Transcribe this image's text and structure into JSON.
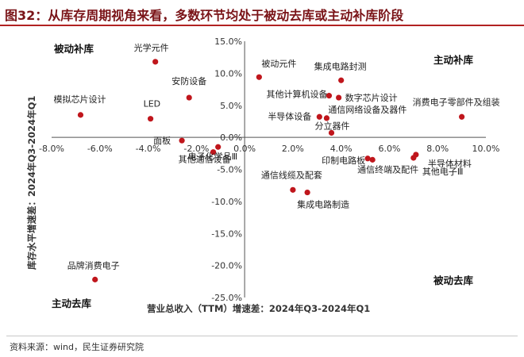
{
  "title": "图32：从库存周期视角来看，多数环节均处于被动去库或主动补库阶段",
  "source": "资料来源：wind，民生证券研究院",
  "colors": {
    "point": "#c0161c",
    "title": "#7a1418",
    "rule": "#b22222"
  },
  "chart_data": {
    "type": "scatter",
    "xlabel": "营业总收入（TTM）增速差：2024年Q3-2024年Q1",
    "ylabel": "库存水平增速差：2024年Q3-2024年Q1",
    "xlim": [
      -8,
      10
    ],
    "ylim": [
      -25,
      15
    ],
    "x_ticks": [
      -8,
      -6,
      -4,
      -2,
      0,
      2,
      4,
      6,
      8,
      10
    ],
    "x_tick_labels": [
      "-8.0%",
      "-6.0%",
      "-4.0%",
      "-2.0%",
      "0.0%",
      "2.0%",
      "4.0%",
      "6.0%",
      "8.0%",
      "10.0%"
    ],
    "y_ticks": [
      15,
      10,
      5,
      0,
      -5,
      -10,
      -15,
      -20,
      -25
    ],
    "y_tick_labels": [
      "15.0%",
      "10.0%",
      "5.0%",
      "0.0%",
      "-5.0%",
      "-10.0%",
      "-15.0%",
      "-20.0%",
      "-25.0%"
    ],
    "quadrants": {
      "top_left": "被动补库",
      "top_right": "主动补库",
      "bottom_left": "主动去库",
      "bottom_right": "被动去库"
    },
    "points": [
      {
        "name": "光学元件",
        "x": -3.7,
        "y": 11.8
      },
      {
        "name": "安防设备",
        "x": -2.3,
        "y": 6.2
      },
      {
        "name": "模拟芯片设计",
        "x": -6.8,
        "y": 3.5
      },
      {
        "name": "LED",
        "x": -3.9,
        "y": 2.9
      },
      {
        "name": "面板",
        "x": -2.6,
        "y": -0.5
      },
      {
        "name": "电子化学品Ⅲ",
        "x": -1.1,
        "y": -1.5
      },
      {
        "name": "其他通信设备",
        "x": -1.3,
        "y": -2.3
      },
      {
        "name": "被动元件",
        "x": 0.6,
        "y": 9.4
      },
      {
        "name": "集成电路封测",
        "x": 4.0,
        "y": 8.9
      },
      {
        "name": "其他计算机设备",
        "x": 3.5,
        "y": 6.5
      },
      {
        "name": "数字芯片设计",
        "x": 3.9,
        "y": 6.2
      },
      {
        "name": "半导体设备",
        "x": 3.1,
        "y": 3.2
      },
      {
        "name": "通信网络设备及器件",
        "x": 3.4,
        "y": 3.0
      },
      {
        "name": "分立器件",
        "x": 3.6,
        "y": 0.7
      },
      {
        "name": "消费电子零部件及组装",
        "x": 9.0,
        "y": 3.2
      },
      {
        "name": "印制电路板",
        "x": 5.1,
        "y": -3.3
      },
      {
        "name": "通信终端及配件",
        "x": 5.3,
        "y": -3.5
      },
      {
        "name": "半导体材料",
        "x": 7.1,
        "y": -2.7
      },
      {
        "name": "其他电子Ⅲ",
        "x": 7.0,
        "y": -3.2
      },
      {
        "name": "通信线缆及配套",
        "x": 2.0,
        "y": -8.2
      },
      {
        "name": "集成电路制造",
        "x": 2.6,
        "y": -8.6
      },
      {
        "name": "品牌消费电子",
        "x": -6.2,
        "y": -22.2
      }
    ]
  }
}
